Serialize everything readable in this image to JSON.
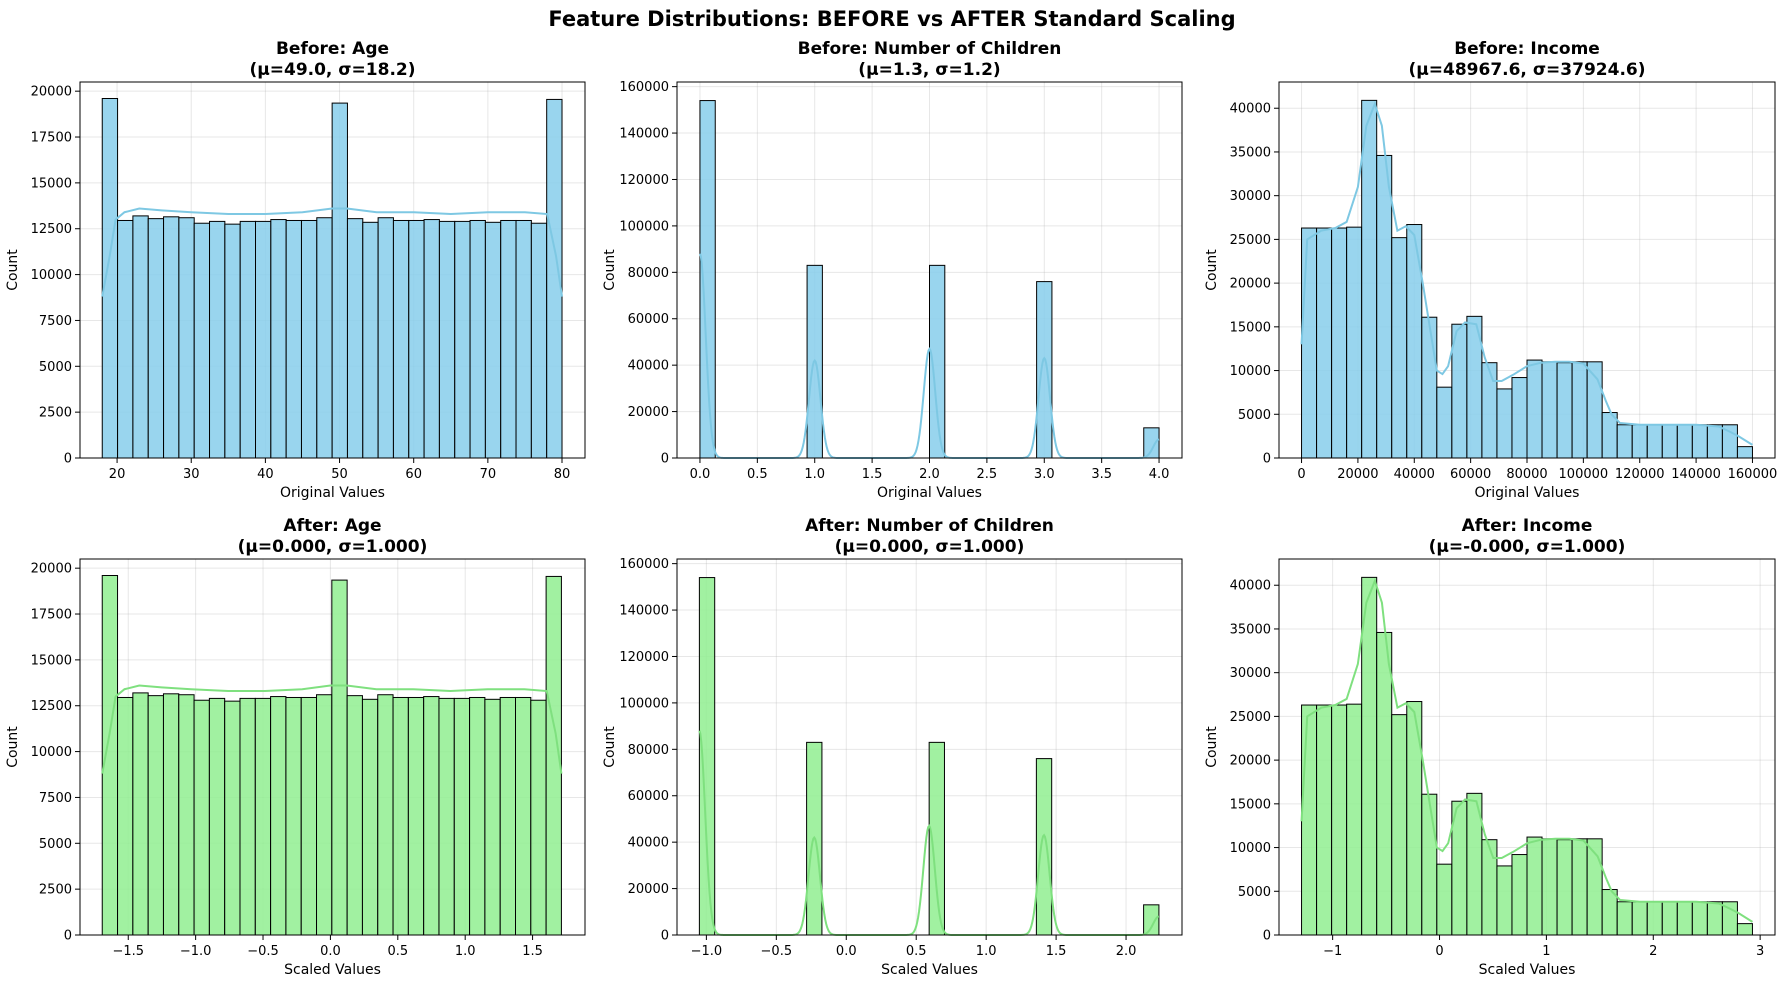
{
  "figure": {
    "title": "Feature Distributions: BEFORE vs AFTER Standard Scaling"
  },
  "colors": {
    "before_bar": "#87ceeb",
    "before_kde": "#7ec8e3",
    "after_bar": "#90ee90",
    "after_kde": "#7fe07f"
  },
  "chart_data": [
    {
      "type": "bar",
      "title": "Before: Age",
      "subtitle": "(μ=49.0, σ=18.2)",
      "xlabel": "Original Values",
      "ylabel": "Count",
      "xlim": [
        15,
        83.1
      ],
      "ylim": [
        0,
        20500
      ],
      "xticks": [
        20,
        30,
        40,
        50,
        60,
        70,
        80
      ],
      "xtick_labels": [
        "20",
        "30",
        "40",
        "50",
        "60",
        "70",
        "80"
      ],
      "yticks": [
        0,
        2500,
        5000,
        7500,
        10000,
        12500,
        15000,
        17500,
        20000
      ],
      "grid": true,
      "bin_range": [
        18,
        80
      ],
      "values": [
        19600,
        12950,
        13200,
        13050,
        13150,
        13100,
        12800,
        12900,
        12750,
        12900,
        12900,
        13000,
        12950,
        12950,
        13100,
        19350,
        13050,
        12850,
        13100,
        12950,
        12950,
        13000,
        12900,
        12900,
        12950,
        12850,
        12950,
        12950,
        12800,
        19550
      ],
      "kde": {
        "x": [
          18,
          19,
          19.8,
          21,
          23,
          26,
          30,
          35,
          40,
          45,
          49,
          51,
          55,
          60,
          65,
          70,
          75,
          78,
          79.2,
          80
        ],
        "y": [
          8800,
          11000,
          13000,
          13400,
          13600,
          13500,
          13400,
          13300,
          13300,
          13400,
          13600,
          13600,
          13400,
          13400,
          13300,
          13400,
          13400,
          13300,
          11000,
          8800
        ]
      },
      "variant": "before"
    },
    {
      "type": "bar",
      "title": "Before: Number of Children",
      "subtitle": "(μ=1.3, σ=1.2)",
      "xlabel": "Original Values",
      "ylabel": "Count",
      "xlim": [
        -0.2,
        4.2
      ],
      "ylim": [
        0,
        162000
      ],
      "xticks": [
        0,
        0.5,
        1,
        1.5,
        2,
        2.5,
        3,
        3.5,
        4
      ],
      "xtick_labels": [
        "0.0",
        "0.5",
        "1.0",
        "1.5",
        "2.0",
        "2.5",
        "3.0",
        "3.5",
        "4.0"
      ],
      "yticks": [
        0,
        20000,
        40000,
        60000,
        80000,
        100000,
        120000,
        140000,
        160000
      ],
      "grid": true,
      "bars": [
        {
          "x0": 0.0,
          "x1": 0.1333,
          "value": 154000
        },
        {
          "x0": 0.9333,
          "x1": 1.0667,
          "value": 83000
        },
        {
          "x0": 2.0,
          "x1": 2.1333,
          "value": 83000
        },
        {
          "x0": 2.9333,
          "x1": 3.0667,
          "value": 76000
        },
        {
          "x0": 3.8667,
          "x1": 4.0,
          "value": 13000
        }
      ],
      "kde_peaks": [
        {
          "mu": 0.0,
          "sigma": 0.05,
          "amp": 88000
        },
        {
          "mu": 1.0,
          "sigma": 0.05,
          "amp": 42000
        },
        {
          "mu": 2.0,
          "sigma": 0.05,
          "amp": 47000
        },
        {
          "mu": 3.0,
          "sigma": 0.05,
          "amp": 43000
        },
        {
          "mu": 4.0,
          "sigma": 0.05,
          "amp": 8000
        }
      ],
      "kde_range": [
        0,
        4
      ],
      "variant": "before"
    },
    {
      "type": "bar",
      "title": "Before: Income",
      "subtitle": "(μ=48967.6, σ=37924.6)",
      "xlabel": "Original Values",
      "ylabel": "Count",
      "xlim": [
        -8000,
        168000
      ],
      "ylim": [
        0,
        43000
      ],
      "xticks": [
        0,
        20000,
        40000,
        60000,
        80000,
        100000,
        120000,
        140000,
        160000
      ],
      "xtick_labels": [
        "0",
        "20000",
        "40000",
        "60000",
        "80000",
        "100000",
        "120000",
        "140000",
        "160000"
      ],
      "yticks": [
        0,
        5000,
        10000,
        15000,
        20000,
        25000,
        30000,
        35000,
        40000
      ],
      "grid": true,
      "bin_range": [
        0,
        160000
      ],
      "values": [
        26300,
        26300,
        26300,
        26400,
        40900,
        34600,
        25200,
        26700,
        16100,
        8100,
        15300,
        16200,
        10900,
        7900,
        9200,
        11200,
        11000,
        10900,
        11000,
        11000,
        5200,
        3800,
        3800,
        3800,
        3800,
        3800,
        3800,
        3800,
        3800,
        1300
      ],
      "kde": {
        "x": [
          0,
          2000,
          7000,
          12000,
          16000,
          20000,
          23000,
          26000,
          28500,
          31000,
          34000,
          37000,
          40000,
          43000,
          46000,
          48000,
          50000,
          52000,
          55000,
          58000,
          62000,
          65000,
          68000,
          71000,
          75000,
          80000,
          85000,
          90000,
          95000,
          100000,
          105000,
          108000,
          110000,
          113000,
          120000,
          130000,
          140000,
          148000,
          152000,
          155000,
          160000
        ],
        "y": [
          13000,
          25000,
          26000,
          26300,
          27000,
          31000,
          38000,
          40500,
          38000,
          31000,
          26000,
          26500,
          25500,
          20000,
          14000,
          10000,
          9600,
          10500,
          14500,
          15500,
          15300,
          11500,
          8800,
          8800,
          9500,
          10500,
          10900,
          11000,
          11000,
          10800,
          9000,
          6500,
          5000,
          4000,
          3800,
          3800,
          3800,
          3600,
          3000,
          2500,
          1500
        ]
      },
      "variant": "before"
    },
    {
      "type": "bar",
      "title": "After: Age",
      "subtitle": "(μ=0.000, σ=1.000)",
      "xlabel": "Scaled Values",
      "ylabel": "Count",
      "xlim": [
        -1.858,
        1.889
      ],
      "ylim": [
        0,
        20500
      ],
      "xticks": [
        -1.5,
        -1.0,
        -0.5,
        0.0,
        0.5,
        1.0,
        1.5
      ],
      "xtick_labels": [
        "−1.5",
        "−1.0",
        "−0.5",
        "0.0",
        "0.5",
        "1.0",
        "1.5"
      ],
      "yticks": [
        0,
        2500,
        5000,
        7500,
        10000,
        12500,
        15000,
        17500,
        20000
      ],
      "grid": true,
      "bin_range": [
        -1.693,
        1.714
      ],
      "values": [
        19600,
        12950,
        13200,
        13050,
        13150,
        13100,
        12800,
        12900,
        12750,
        12900,
        12900,
        13000,
        12950,
        12950,
        13100,
        19350,
        13050,
        12850,
        13100,
        12950,
        12950,
        13000,
        12900,
        12900,
        12950,
        12850,
        12950,
        12950,
        12800,
        19550
      ],
      "kde": {
        "x": [
          -1.693,
          -1.638,
          -1.594,
          -1.528,
          -1.418,
          -1.253,
          -1.034,
          -0.759,
          -0.484,
          -0.209,
          0.0,
          0.121,
          0.341,
          0.616,
          0.89,
          1.165,
          1.44,
          1.605,
          1.671,
          1.714
        ],
        "y": [
          8800,
          11000,
          13000,
          13400,
          13600,
          13500,
          13400,
          13300,
          13300,
          13400,
          13600,
          13600,
          13400,
          13400,
          13300,
          13400,
          13400,
          13300,
          11000,
          8800
        ]
      },
      "variant": "after"
    },
    {
      "type": "bar",
      "title": "After: Number of Children",
      "subtitle": "(μ=0.000, σ=1.000)",
      "xlabel": "Scaled Values",
      "ylabel": "Count",
      "xlim": [
        -1.21,
        2.4
      ],
      "ylim": [
        0,
        162000
      ],
      "xticks": [
        -1.0,
        -0.5,
        0.0,
        0.5,
        1.0,
        1.5,
        2.0
      ],
      "xtick_labels": [
        "−1.0",
        "−0.5",
        "0.0",
        "0.5",
        "1.0",
        "1.5",
        "2.0"
      ],
      "yticks": [
        0,
        20000,
        40000,
        60000,
        80000,
        100000,
        120000,
        140000,
        160000
      ],
      "grid": true,
      "bars": [
        {
          "x0": -1.05,
          "x1": -0.9405,
          "value": 154000
        },
        {
          "x0": -0.2835,
          "x1": -0.174,
          "value": 83000
        },
        {
          "x0": 0.5925,
          "x1": 0.702,
          "value": 83000
        },
        {
          "x0": 1.359,
          "x1": 1.4685,
          "value": 76000
        },
        {
          "x0": 2.1255,
          "x1": 2.235,
          "value": 13000
        }
      ],
      "kde_peaks": [
        {
          "mu": -1.05,
          "sigma": 0.041,
          "amp": 88000
        },
        {
          "mu": -0.229,
          "sigma": 0.041,
          "amp": 42000
        },
        {
          "mu": 0.592,
          "sigma": 0.041,
          "amp": 47000
        },
        {
          "mu": 1.413,
          "sigma": 0.041,
          "amp": 43000
        },
        {
          "mu": 2.235,
          "sigma": 0.041,
          "amp": 8000
        }
      ],
      "kde_range": [
        -1.05,
        2.235
      ],
      "variant": "after"
    },
    {
      "type": "bar",
      "title": "After: Income",
      "subtitle": "(μ=-0.000, σ=1.000)",
      "xlabel": "Scaled Values",
      "ylabel": "Count",
      "xlim": [
        -1.502,
        3.139
      ],
      "ylim": [
        0,
        43000
      ],
      "xticks": [
        -1,
        0,
        1,
        2,
        3
      ],
      "xtick_labels": [
        "−1",
        "0",
        "1",
        "2",
        "3"
      ],
      "yticks": [
        0,
        5000,
        10000,
        15000,
        20000,
        25000,
        30000,
        35000,
        40000
      ],
      "grid": true,
      "bin_range": [
        -1.291,
        2.928
      ],
      "values": [
        26300,
        26300,
        26300,
        26400,
        40900,
        34600,
        25200,
        26700,
        16100,
        8100,
        15300,
        16200,
        10900,
        7900,
        9200,
        11200,
        11000,
        10900,
        11000,
        11000,
        5200,
        3800,
        3800,
        3800,
        3800,
        3800,
        3800,
        3800,
        3800,
        1300
      ],
      "kde": {
        "x": [
          -1.291,
          -1.238,
          -1.106,
          -0.975,
          -0.869,
          -0.764,
          -0.685,
          -0.605,
          -0.539,
          -0.474,
          -0.394,
          -0.315,
          -0.236,
          -0.157,
          -0.078,
          -0.025,
          0.028,
          0.081,
          0.16,
          0.239,
          0.345,
          0.424,
          0.503,
          0.582,
          0.688,
          0.82,
          0.951,
          1.083,
          1.215,
          1.347,
          1.479,
          1.558,
          1.611,
          1.69,
          1.875,
          2.138,
          2.402,
          2.613,
          2.719,
          2.798,
          2.928
        ],
        "y": [
          13000,
          25000,
          26000,
          26300,
          27000,
          31000,
          38000,
          40500,
          38000,
          31000,
          26000,
          26500,
          25500,
          20000,
          14000,
          10000,
          9600,
          10500,
          14500,
          15500,
          15300,
          11500,
          8800,
          8800,
          9500,
          10500,
          10900,
          11000,
          11000,
          10800,
          9000,
          6500,
          5000,
          4000,
          3800,
          3800,
          3800,
          3600,
          3000,
          2500,
          1500
        ]
      },
      "variant": "after"
    }
  ]
}
